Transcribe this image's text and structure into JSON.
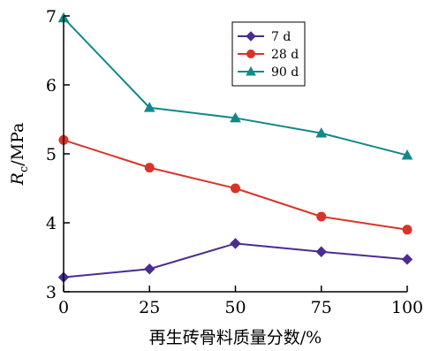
{
  "chart_data": {
    "type": "line",
    "x": [
      0,
      25,
      50,
      75,
      100
    ],
    "xlim": [
      0,
      100
    ],
    "ylim": [
      3,
      7
    ],
    "xticks": [
      "0",
      "25",
      "50",
      "75",
      "100"
    ],
    "yticks": [
      "3",
      "4",
      "5",
      "6",
      "7"
    ],
    "xlabel": "再生砖骨料质量分数/%",
    "ylabel_main": "R",
    "ylabel_sub": "c",
    "ylabel_unit": "/MPa",
    "grid": false,
    "legend_position": "top-right",
    "series": [
      {
        "name": "7 d",
        "values": [
          3.21,
          3.33,
          3.7,
          3.58,
          3.47
        ],
        "color": "#4b2c92",
        "marker": "diamond"
      },
      {
        "name": "28 d",
        "values": [
          5.2,
          4.8,
          4.5,
          4.09,
          3.9
        ],
        "color": "#d9342b",
        "marker": "circle"
      },
      {
        "name": "90 d",
        "values": [
          6.97,
          5.67,
          5.52,
          5.3,
          4.98
        ],
        "color": "#13888a",
        "marker": "triangle"
      }
    ]
  }
}
